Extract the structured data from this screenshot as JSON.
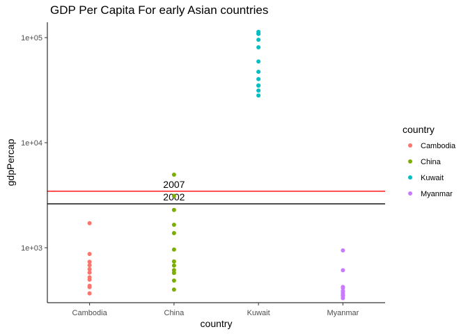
{
  "chart_data": {
    "type": "scatter",
    "title": "GDP Per Capita For early Asian countries",
    "xlabel": "country",
    "ylabel": "gdpPercap",
    "y_scale": "log10",
    "ylim": [
      300,
      140000
    ],
    "grid": false,
    "legend_position": "right",
    "legend_title": "country",
    "categories": [
      "Cambodia",
      "China",
      "Kuwait",
      "Myanmar"
    ],
    "y_ticks": [
      {
        "value": 1000,
        "label": "1e+03"
      },
      {
        "value": 10000,
        "label": "1e+04"
      },
      {
        "value": 100000,
        "label": "1e+05"
      }
    ],
    "series": [
      {
        "name": "Cambodia",
        "color": "#F8766D",
        "values": [
          368,
          434,
          497,
          523,
          422,
          580,
          682,
          735,
          872,
          1713,
          625
        ]
      },
      {
        "name": "China",
        "color": "#7CAE00",
        "values": [
          400,
          576,
          487,
          612,
          677,
          741,
          962,
          1379,
          1656,
          2289,
          3119,
          4959
        ]
      },
      {
        "name": "Kuwait",
        "color": "#00BFC4",
        "values": [
          108382,
          113523,
          95458,
          80895,
          109348,
          59265,
          31354,
          28118,
          34933,
          40301,
          35110,
          47307
        ]
      },
      {
        "name": "Myanmar",
        "color": "#C77CFF",
        "values": [
          331,
          350,
          388,
          349,
          357,
          370,
          424,
          385,
          415,
          611,
          944
        ]
      }
    ],
    "reference_lines": [
      {
        "value": 3450,
        "color": "#FF0000",
        "label": "2007",
        "label_category": "China"
      },
      {
        "value": 2620,
        "color": "#000000",
        "label": "2002",
        "label_category": "China"
      }
    ]
  }
}
